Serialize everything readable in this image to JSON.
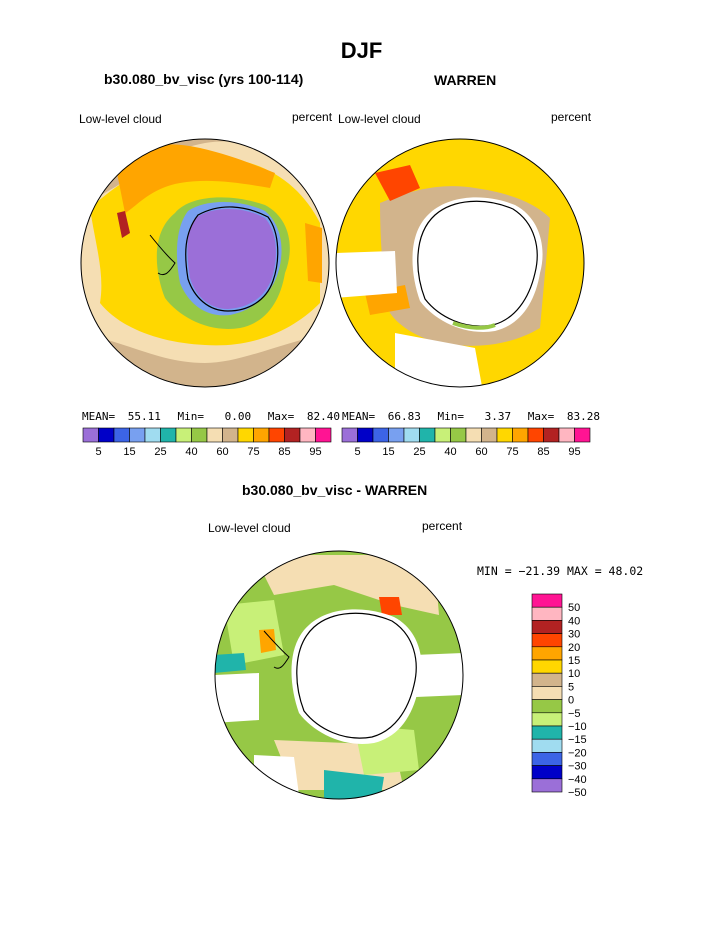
{
  "page": {
    "title": "DJF"
  },
  "panels": [
    {
      "subtitle": "b30.080_bv_visc (yrs 100-114)",
      "left_label": "Low-level cloud",
      "right_label": "percent",
      "stats": {
        "mean_label": "MEAN=",
        "mean": "55.11",
        "min_label": "Min=",
        "min": "0.00",
        "max_label": "Max=",
        "max": "82.40"
      }
    },
    {
      "subtitle": "WARREN",
      "left_label": "Low-level cloud",
      "right_label": "percent",
      "stats": {
        "mean_label": "MEAN=",
        "mean": "66.83",
        "min_label": "Min=",
        "min": "3.37",
        "max_label": "Max=",
        "max": "83.28"
      }
    },
    {
      "subtitle": "b30.080_bv_visc - WARREN",
      "left_label": "Low-level cloud",
      "right_label": "percent",
      "stats_text": "MIN = −21.39 MAX =  48.02"
    }
  ],
  "chart_data": [
    {
      "type": "heatmap",
      "projection": "south-polar-stereographic",
      "title": "b30.080_bv_visc (yrs 100-114)",
      "variable": "Low-level cloud",
      "units": "percent",
      "colorbar": {
        "levels": [
          5,
          10,
          15,
          20,
          25,
          30,
          40,
          50,
          60,
          70,
          75,
          80,
          85,
          90,
          95
        ],
        "tick_labels": [
          "5",
          "15",
          "25",
          "40",
          "60",
          "75",
          "85",
          "95"
        ],
        "colors": [
          "#9b6fd8",
          "#0000c8",
          "#3c64e6",
          "#78a0f0",
          "#a0dcf0",
          "#20b4aa",
          "#c8f078",
          "#96c846",
          "#f5deb3",
          "#d2b48c",
          "#ffd700",
          "#ffa500",
          "#ff4500",
          "#b22222",
          "#ffb6c1",
          "#ff1493"
        ]
      },
      "stats": {
        "mean": 55.11,
        "min": 0.0,
        "max": 82.4
      }
    },
    {
      "type": "heatmap",
      "projection": "south-polar-stereographic",
      "title": "WARREN",
      "variable": "Low-level cloud",
      "units": "percent",
      "colorbar": {
        "levels": [
          5,
          10,
          15,
          20,
          25,
          30,
          40,
          50,
          60,
          70,
          75,
          80,
          85,
          90,
          95
        ],
        "tick_labels": [
          "5",
          "15",
          "25",
          "40",
          "60",
          "75",
          "85",
          "95"
        ],
        "colors": [
          "#9b6fd8",
          "#0000c8",
          "#3c64e6",
          "#78a0f0",
          "#a0dcf0",
          "#20b4aa",
          "#c8f078",
          "#96c846",
          "#f5deb3",
          "#d2b48c",
          "#ffd700",
          "#ffa500",
          "#ff4500",
          "#b22222",
          "#ffb6c1",
          "#ff1493"
        ]
      },
      "stats": {
        "mean": 66.83,
        "min": 3.37,
        "max": 83.28
      }
    },
    {
      "type": "heatmap",
      "projection": "south-polar-stereographic",
      "title": "b30.080_bv_visc - WARREN",
      "variable": "Low-level cloud",
      "units": "percent",
      "colorbar": {
        "orientation": "vertical",
        "levels": [
          -50,
          -40,
          -30,
          -20,
          -15,
          -10,
          -5,
          0,
          5,
          10,
          15,
          20,
          30,
          40,
          50
        ],
        "tick_labels": [
          "50",
          "40",
          "30",
          "20",
          "15",
          "10",
          "5",
          "0",
          "−5",
          "−10",
          "−15",
          "−20",
          "−30",
          "−40",
          "−50"
        ],
        "colors": [
          "#ff1493",
          "#ffb6c1",
          "#b22222",
          "#ff4500",
          "#ffa500",
          "#ffd700",
          "#d2b48c",
          "#f5deb3",
          "#96c846",
          "#c8f078",
          "#20b4aa",
          "#a0dcf0",
          "#3c64e6",
          "#0000c8",
          "#9b6fd8"
        ]
      },
      "stats": {
        "min": -21.39,
        "max": 48.02
      }
    }
  ]
}
